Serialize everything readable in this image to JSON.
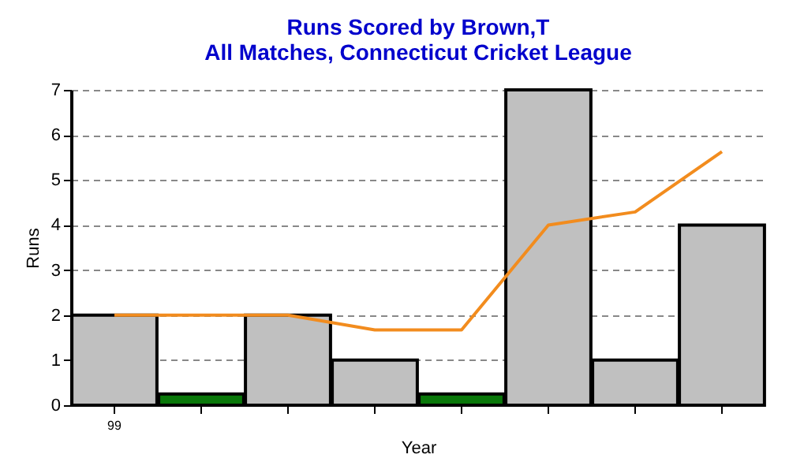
{
  "chart_data": {
    "type": "bar",
    "title": "Runs Scored by Brown,T",
    "subtitle": "All Matches, Connecticut Cricket League",
    "xlabel": "Year",
    "ylabel": "Runs",
    "categories": [
      "99",
      null,
      null,
      null,
      null,
      null,
      null,
      null
    ],
    "series": [
      {
        "colors": [
          "#c0c0c0",
          "#0a780a",
          "#c0c0c0",
          "#c0c0c0",
          "#0a780a",
          "#c0c0c0",
          "#c0c0c0",
          "#c0c0c0"
        ],
        "values": [
          2,
          0.25,
          2,
          1,
          0.25,
          7,
          1,
          4
        ]
      },
      {
        "type": "line",
        "color": "#f28c1e",
        "values": [
          2,
          2,
          2,
          1.67,
          1.67,
          4,
          4.29,
          5.63
        ]
      }
    ],
    "ylim": [
      0,
      7
    ],
    "yticks": [
      0,
      1,
      2,
      3,
      4,
      5,
      6,
      7
    ],
    "grid": "y"
  }
}
